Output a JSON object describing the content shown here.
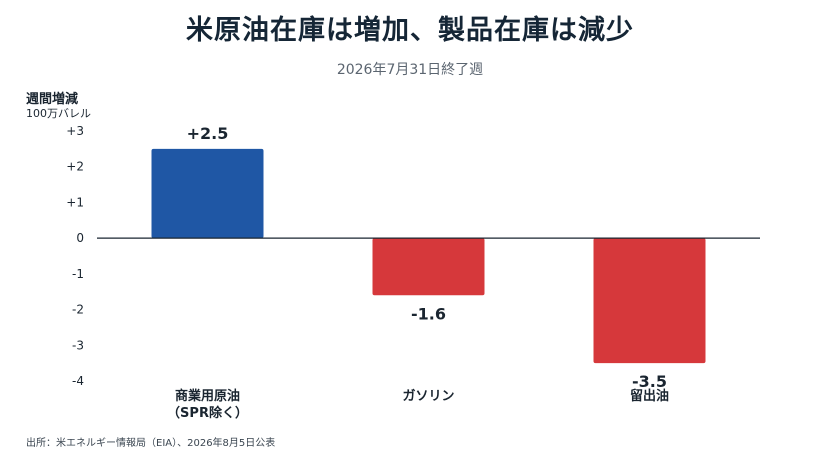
{
  "header": {
    "title": "米原油在庫は増加、製品在庫は減少",
    "subtitle": "2026年7月31日終了週"
  },
  "axis": {
    "ylabel": "週間増減",
    "yunit": "100万バレル"
  },
  "footer": {
    "source": "出所：米エネルギー情報局（EIA）、2026年8月5日公表"
  },
  "colors": {
    "positive": "#1f57a5",
    "negative": "#d6383b"
  },
  "chart_data": {
    "type": "bar",
    "title": "米原油在庫は増加、製品在庫は減少",
    "subtitle": "2026年7月31日終了週",
    "ylabel": "週間増減 100万バレル",
    "xlabel": "",
    "categories": [
      [
        "商業用原油",
        "（SPR除く）"
      ],
      [
        "ガソリン"
      ],
      [
        "留出油"
      ]
    ],
    "values": [
      2.5,
      -1.6,
      -3.5
    ],
    "value_labels": [
      "+2.5",
      "-1.6",
      "-3.5"
    ],
    "ylim": [
      -4,
      3
    ],
    "yticks": [
      3,
      2,
      1,
      0,
      -1,
      -2,
      -3,
      -4
    ],
    "ytick_labels": [
      "+3",
      "+2",
      "+1",
      "0",
      "-1",
      "-2",
      "-3",
      "-4"
    ],
    "grid": false,
    "legend": "none"
  }
}
